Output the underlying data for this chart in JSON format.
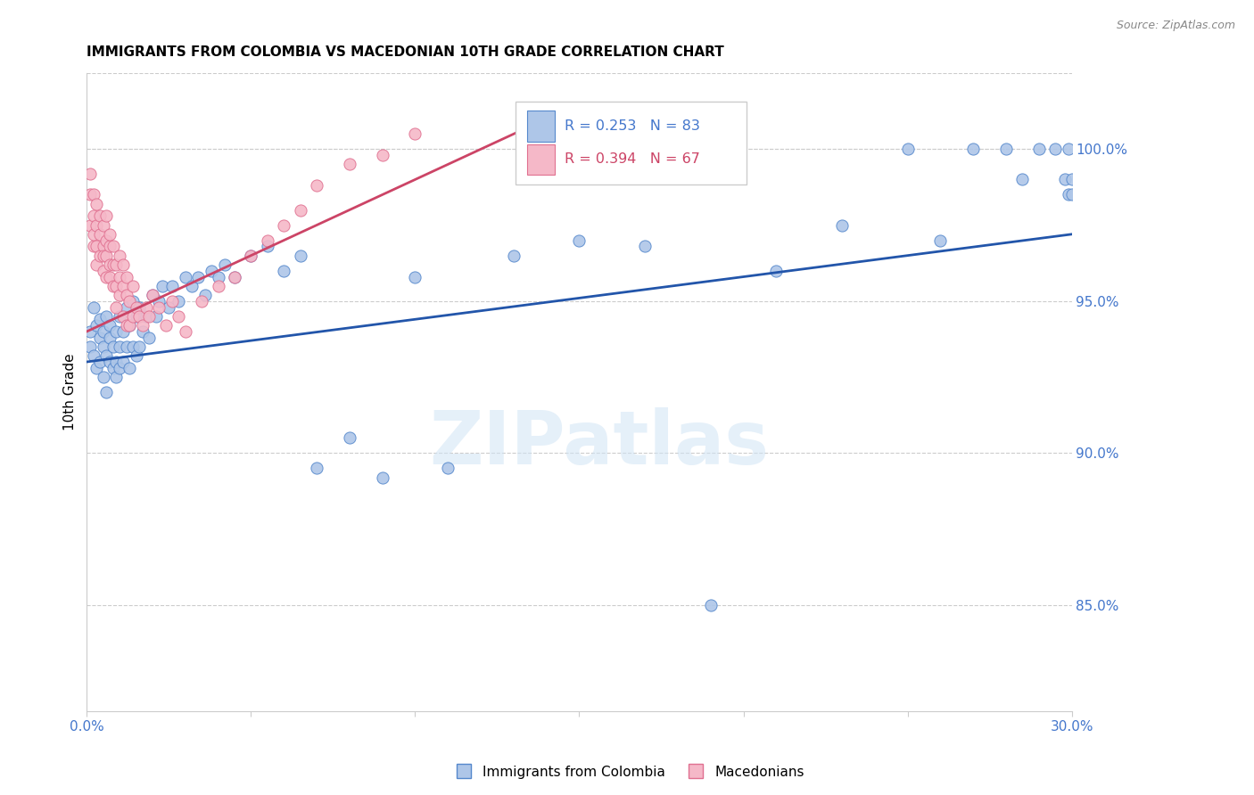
{
  "title": "IMMIGRANTS FROM COLOMBIA VS MACEDONIAN 10TH GRADE CORRELATION CHART",
  "source": "Source: ZipAtlas.com",
  "ylabel": "10th Grade",
  "right_yticks": [
    0.85,
    0.9,
    0.95,
    1.0
  ],
  "xlim": [
    0.0,
    0.3
  ],
  "ylim": [
    0.815,
    1.025
  ],
  "legend_blue_r": "R = 0.253",
  "legend_blue_n": "N = 83",
  "legend_pink_r": "R = 0.394",
  "legend_pink_n": "N = 67",
  "legend_label_blue": "Immigrants from Colombia",
  "legend_label_pink": "Macedonians",
  "blue_fill": "#aec6e8",
  "pink_fill": "#f5b8c8",
  "blue_edge": "#5588cc",
  "pink_edge": "#e07090",
  "blue_line": "#2255aa",
  "pink_line": "#cc4466",
  "axis_color": "#4477cc",
  "watermark": "ZIPatlas",
  "blue_scatter_x": [
    0.001,
    0.001,
    0.002,
    0.002,
    0.003,
    0.003,
    0.004,
    0.004,
    0.004,
    0.005,
    0.005,
    0.005,
    0.006,
    0.006,
    0.006,
    0.007,
    0.007,
    0.007,
    0.008,
    0.008,
    0.009,
    0.009,
    0.009,
    0.01,
    0.01,
    0.01,
    0.011,
    0.011,
    0.012,
    0.012,
    0.013,
    0.013,
    0.014,
    0.014,
    0.015,
    0.015,
    0.016,
    0.016,
    0.017,
    0.018,
    0.019,
    0.02,
    0.021,
    0.022,
    0.023,
    0.025,
    0.026,
    0.028,
    0.03,
    0.032,
    0.034,
    0.036,
    0.038,
    0.04,
    0.042,
    0.045,
    0.05,
    0.055,
    0.06,
    0.065,
    0.07,
    0.08,
    0.09,
    0.1,
    0.11,
    0.13,
    0.15,
    0.17,
    0.19,
    0.21,
    0.23,
    0.25,
    0.26,
    0.27,
    0.28,
    0.285,
    0.29,
    0.295,
    0.298,
    0.299,
    0.299,
    0.3,
    0.3
  ],
  "blue_scatter_y": [
    0.935,
    0.94,
    0.932,
    0.948,
    0.928,
    0.942,
    0.93,
    0.944,
    0.938,
    0.925,
    0.94,
    0.935,
    0.932,
    0.945,
    0.92,
    0.938,
    0.93,
    0.942,
    0.928,
    0.935,
    0.94,
    0.925,
    0.93,
    0.945,
    0.935,
    0.928,
    0.94,
    0.93,
    0.948,
    0.935,
    0.942,
    0.928,
    0.95,
    0.935,
    0.945,
    0.932,
    0.948,
    0.935,
    0.94,
    0.945,
    0.938,
    0.952,
    0.945,
    0.95,
    0.955,
    0.948,
    0.955,
    0.95,
    0.958,
    0.955,
    0.958,
    0.952,
    0.96,
    0.958,
    0.962,
    0.958,
    0.965,
    0.968,
    0.96,
    0.965,
    0.895,
    0.905,
    0.892,
    0.958,
    0.895,
    0.965,
    0.97,
    0.968,
    0.85,
    0.96,
    0.975,
    1.0,
    0.97,
    1.0,
    1.0,
    0.99,
    1.0,
    1.0,
    0.99,
    0.985,
    1.0,
    0.99,
    0.985
  ],
  "pink_scatter_x": [
    0.001,
    0.001,
    0.001,
    0.002,
    0.002,
    0.002,
    0.002,
    0.003,
    0.003,
    0.003,
    0.003,
    0.004,
    0.004,
    0.004,
    0.005,
    0.005,
    0.005,
    0.005,
    0.006,
    0.006,
    0.006,
    0.006,
    0.007,
    0.007,
    0.007,
    0.007,
    0.008,
    0.008,
    0.008,
    0.009,
    0.009,
    0.009,
    0.01,
    0.01,
    0.01,
    0.011,
    0.011,
    0.011,
    0.012,
    0.012,
    0.012,
    0.013,
    0.013,
    0.014,
    0.014,
    0.015,
    0.016,
    0.017,
    0.018,
    0.019,
    0.02,
    0.022,
    0.024,
    0.026,
    0.028,
    0.03,
    0.035,
    0.04,
    0.045,
    0.05,
    0.055,
    0.06,
    0.065,
    0.07,
    0.08,
    0.09,
    0.1
  ],
  "pink_scatter_y": [
    0.975,
    0.985,
    0.992,
    0.978,
    0.985,
    0.968,
    0.972,
    0.975,
    0.982,
    0.962,
    0.968,
    0.972,
    0.978,
    0.965,
    0.968,
    0.975,
    0.96,
    0.965,
    0.97,
    0.978,
    0.958,
    0.965,
    0.968,
    0.958,
    0.962,
    0.972,
    0.955,
    0.962,
    0.968,
    0.955,
    0.962,
    0.948,
    0.958,
    0.965,
    0.952,
    0.955,
    0.962,
    0.945,
    0.952,
    0.958,
    0.942,
    0.95,
    0.942,
    0.945,
    0.955,
    0.948,
    0.945,
    0.942,
    0.948,
    0.945,
    0.952,
    0.948,
    0.942,
    0.95,
    0.945,
    0.94,
    0.95,
    0.955,
    0.958,
    0.965,
    0.97,
    0.975,
    0.98,
    0.988,
    0.995,
    0.998,
    1.005
  ],
  "blue_trendline_x": [
    0.0,
    0.3
  ],
  "blue_trendline_y": [
    0.93,
    0.972
  ],
  "pink_trendline_x": [
    0.0,
    0.14
  ],
  "pink_trendline_y": [
    0.94,
    1.01
  ]
}
